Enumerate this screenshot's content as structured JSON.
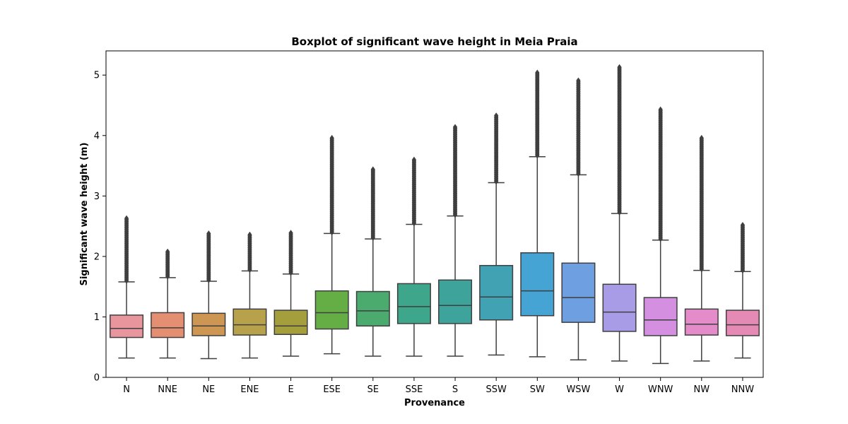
{
  "chart_data": {
    "type": "box",
    "title": "Boxplot of significant wave height in Meia Praia",
    "xlabel": "Provenance",
    "ylabel": "Significant wave height (m)",
    "ylim": [
      0,
      5.4
    ],
    "yticks": [
      0,
      1,
      2,
      3,
      4,
      5
    ],
    "grid": false,
    "categories": [
      "N",
      "NNE",
      "NE",
      "ENE",
      "E",
      "ESE",
      "SE",
      "SSE",
      "S",
      "SSW",
      "SW",
      "WSW",
      "W",
      "WNW",
      "NW",
      "NNW"
    ],
    "colors": [
      "#e8959e",
      "#e48f72",
      "#cd9652",
      "#b7a24b",
      "#a59e3d",
      "#65ad45",
      "#4baa6e",
      "#3ea68a",
      "#3ea39a",
      "#40a2b3",
      "#45a4d4",
      "#6e9fe0",
      "#a99ce6",
      "#d58fe1",
      "#e48cc9",
      "#e58ab4"
    ],
    "boxes": [
      {
        "whisker_low": 0.32,
        "q1": 0.66,
        "median": 0.81,
        "q3": 1.03,
        "whisker_high": 1.58,
        "outliers_range": [
          1.58,
          2.63
        ]
      },
      {
        "whisker_low": 0.32,
        "q1": 0.66,
        "median": 0.82,
        "q3": 1.07,
        "whisker_high": 1.65,
        "outliers_range": [
          1.65,
          2.08
        ]
      },
      {
        "whisker_low": 0.31,
        "q1": 0.69,
        "median": 0.85,
        "q3": 1.06,
        "whisker_high": 1.59,
        "outliers_range": [
          1.59,
          2.38
        ]
      },
      {
        "whisker_low": 0.32,
        "q1": 0.7,
        "median": 0.87,
        "q3": 1.13,
        "whisker_high": 1.76,
        "outliers_range": [
          1.76,
          2.36
        ]
      },
      {
        "whisker_low": 0.35,
        "q1": 0.71,
        "median": 0.85,
        "q3": 1.11,
        "whisker_high": 1.71,
        "outliers_range": [
          1.71,
          2.39
        ]
      },
      {
        "whisker_low": 0.39,
        "q1": 0.8,
        "median": 1.07,
        "q3": 1.43,
        "whisker_high": 2.38,
        "outliers_range": [
          2.38,
          3.96
        ]
      },
      {
        "whisker_low": 0.35,
        "q1": 0.85,
        "median": 1.1,
        "q3": 1.42,
        "whisker_high": 2.29,
        "outliers_range": [
          2.29,
          3.44
        ]
      },
      {
        "whisker_low": 0.35,
        "q1": 0.89,
        "median": 1.17,
        "q3": 1.55,
        "whisker_high": 2.53,
        "outliers_range": [
          2.53,
          3.6
        ]
      },
      {
        "whisker_low": 0.35,
        "q1": 0.89,
        "median": 1.19,
        "q3": 1.61,
        "whisker_high": 2.67,
        "outliers_range": [
          2.67,
          4.14
        ]
      },
      {
        "whisker_low": 0.37,
        "q1": 0.95,
        "median": 1.33,
        "q3": 1.85,
        "whisker_high": 3.22,
        "outliers_range": [
          3.22,
          4.33
        ]
      },
      {
        "whisker_low": 0.34,
        "q1": 1.02,
        "median": 1.43,
        "q3": 2.06,
        "whisker_high": 3.65,
        "outliers_range": [
          3.65,
          5.04
        ]
      },
      {
        "whisker_low": 0.29,
        "q1": 0.91,
        "median": 1.32,
        "q3": 1.89,
        "whisker_high": 3.35,
        "outliers_range": [
          3.35,
          4.91
        ]
      },
      {
        "whisker_low": 0.27,
        "q1": 0.76,
        "median": 1.08,
        "q3": 1.54,
        "whisker_high": 2.71,
        "outliers_range": [
          2.71,
          5.13
        ]
      },
      {
        "whisker_low": 0.23,
        "q1": 0.69,
        "median": 0.95,
        "q3": 1.32,
        "whisker_high": 2.27,
        "outliers_range": [
          2.27,
          4.43
        ]
      },
      {
        "whisker_low": 0.27,
        "q1": 0.7,
        "median": 0.88,
        "q3": 1.13,
        "whisker_high": 1.77,
        "outliers_range": [
          1.77,
          3.96
        ]
      },
      {
        "whisker_low": 0.32,
        "q1": 0.69,
        "median": 0.87,
        "q3": 1.11,
        "whisker_high": 1.75,
        "outliers_range": [
          1.75,
          2.52
        ]
      }
    ],
    "line_color": "#3f3f3f"
  }
}
